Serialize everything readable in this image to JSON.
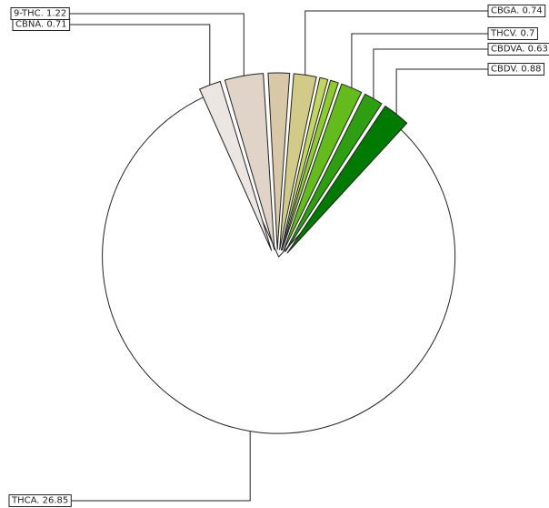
{
  "chart_data": {
    "type": "pie",
    "title": "",
    "exploded": true,
    "slices": [
      {
        "label": "THCA",
        "value": 26.85,
        "text": "THCA. 26.85",
        "color": "#ffffff"
      },
      {
        "label": "CBNA",
        "value": 0.71,
        "text": "CBNA. 0.71",
        "color": "#ece6e3"
      },
      {
        "label": "9-THC",
        "value": 1.22,
        "text": "9-THC. 1.22",
        "color": "#dfd4c7"
      },
      {
        "label": "",
        "value": 0.7,
        "text": "",
        "color": "#d9c8a8"
      },
      {
        "label": "CBGA",
        "value": 0.74,
        "text": "CBGA. 0.74",
        "color": "#d2cb87"
      },
      {
        "label": "",
        "value": 0.3,
        "text": "",
        "color": "#c0d65c"
      },
      {
        "label": "",
        "value": 0.3,
        "text": "",
        "color": "#8ccc2a"
      },
      {
        "label": "THCV",
        "value": 0.7,
        "text": "THCV. 0.7",
        "color": "#63bb1c"
      },
      {
        "label": "CBDVA",
        "value": 0.63,
        "text": "CBDVA. 0.63",
        "color": "#2f9f12"
      },
      {
        "label": "CBDV",
        "value": 0.88,
        "text": "CBDV. 0.88",
        "color": "#007a00"
      }
    ]
  }
}
